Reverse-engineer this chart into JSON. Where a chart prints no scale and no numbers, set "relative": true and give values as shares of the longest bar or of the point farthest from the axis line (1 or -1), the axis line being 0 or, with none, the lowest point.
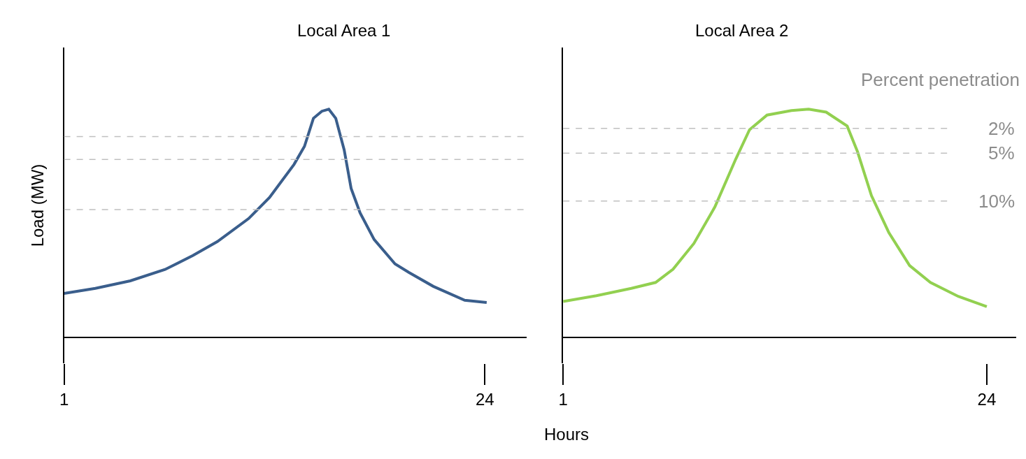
{
  "chart_data": [
    {
      "type": "line",
      "title": "Local Area 1",
      "xlabel": "Hours",
      "ylabel": "Load (MW)",
      "relative": true,
      "xlim": [
        1,
        26.3
      ],
      "xticks": [
        1,
        24
      ],
      "series": [
        {
          "color": "#3a5e8c",
          "x": [
            1,
            2.71,
            4.62,
            6.52,
            8.04,
            9.38,
            11.09,
            12.23,
            13.57,
            14.14,
            14.63,
            15.09,
            15.47,
            15.85,
            16.31,
            16.69,
            17.18,
            17.95,
            19.09,
            19.85,
            21.18,
            22.9,
            24.1
          ],
          "values": [
            0.193,
            0.215,
            0.248,
            0.298,
            0.359,
            0.42,
            0.521,
            0.613,
            0.758,
            0.837,
            0.96,
            0.991,
            1,
            0.96,
            0.822,
            0.653,
            0.546,
            0.429,
            0.322,
            0.285,
            0.224,
            0.163,
            0.153
          ]
        }
      ],
      "ref_lines": [
        {
          "axis": "y",
          "value": 0.88,
          "color": "#c0c0c0",
          "line_style": "dashed"
        },
        {
          "axis": "y",
          "value": 0.78,
          "color": "#c0c0c0",
          "line_style": "dashed"
        },
        {
          "axis": "y",
          "value": 0.56,
          "color": "#c0c0c0",
          "line_style": "dashed"
        }
      ]
    },
    {
      "type": "line",
      "title": "Local Area 2",
      "relative": true,
      "xlim": [
        1,
        25.6
      ],
      "xticks": [
        1,
        24
      ],
      "series": [
        {
          "color": "#92d050",
          "x": [
            1,
            2.81,
            4.7,
            6.02,
            6.97,
            8.1,
            9.24,
            10.37,
            11.12,
            12.07,
            13.39,
            14.33,
            15.28,
            16.42,
            16.98,
            17.74,
            18.68,
            19.81,
            20.94,
            22.45,
            24
          ],
          "values": [
            0.158,
            0.183,
            0.215,
            0.241,
            0.299,
            0.412,
            0.572,
            0.781,
            0.91,
            0.974,
            0.994,
            1,
            0.987,
            0.926,
            0.814,
            0.621,
            0.46,
            0.315,
            0.241,
            0.18,
            0.135
          ]
        }
      ],
      "ref_lines": [
        {
          "axis": "y",
          "value": 0.916,
          "color": "#c0c0c0",
          "line_style": "dashed"
        },
        {
          "axis": "y",
          "value": 0.807,
          "color": "#c0c0c0",
          "line_style": "dashed"
        },
        {
          "axis": "y",
          "value": 0.598,
          "color": "#c0c0c0",
          "line_style": "dashed"
        }
      ],
      "annotations": [
        "Percent penetration",
        "2%",
        "5%",
        "10%"
      ]
    }
  ]
}
